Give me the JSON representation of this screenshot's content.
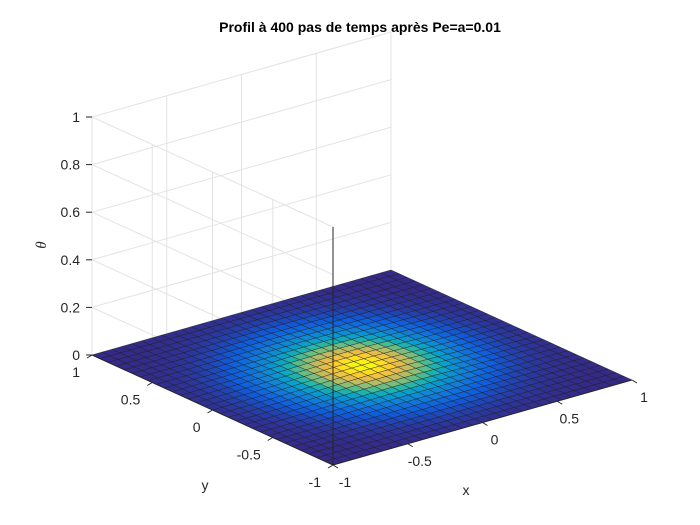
{
  "chart_data": {
    "type": "surface",
    "title": "Profil à  400 pas de temps après Pe=a=0.01",
    "xlabel": "x",
    "ylabel": "y",
    "zlabel": "θ",
    "xlim": [
      -1,
      1
    ],
    "ylim": [
      -1,
      1
    ],
    "zlim": [
      0,
      1
    ],
    "x_ticks": [
      "-1",
      "-0.5",
      "0",
      "0.5",
      "1"
    ],
    "y_ticks": [
      "-1",
      "-0.5",
      "0",
      "0.5",
      "1"
    ],
    "z_ticks": [
      "0",
      "0.2",
      "0.4",
      "0.6",
      "0.8",
      "1"
    ],
    "grid": true,
    "colormap": "parula",
    "grid_resolution": 30,
    "surface": {
      "description": "Gaussian-like bump centered at (0,0)",
      "center": [
        0,
        0
      ],
      "peak_value": 0.01,
      "width": 0.5
    }
  }
}
